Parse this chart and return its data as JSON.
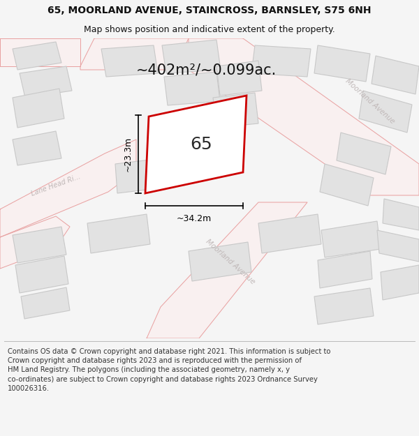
{
  "title_line1": "65, MOORLAND AVENUE, STAINCROSS, BARNSLEY, S75 6NH",
  "title_line2": "Map shows position and indicative extent of the property.",
  "area_text": "~402m²/~0.099ac.",
  "label_65": "65",
  "dim_width": "~34.2m",
  "dim_height": "~23.3m",
  "footer_text": "Contains OS data © Crown copyright and database right 2021. This information is subject to Crown copyright and database rights 2023 and is reproduced with the permission of HM Land Registry. The polygons (including the associated geometry, namely x, y co-ordinates) are subject to Crown copyright and database rights 2023 Ordnance Survey 100026316.",
  "bg_color": "#f5f5f5",
  "map_bg": "#eeecec",
  "building_fill": "#e2e2e2",
  "building_stroke": "#c8c8c8",
  "road_stroke": "#e8a0a0",
  "road_fill": "#f9f0f0",
  "plot_stroke": "#cc0000",
  "street_label_color": "#c0b8b8",
  "footer_color": "#333333",
  "title_fontsize": 10,
  "subtitle_fontsize": 9,
  "area_fontsize": 15,
  "label_fontsize": 18,
  "dim_fontsize": 9,
  "street_fontsize": 7.5,
  "footer_fontsize": 7.2
}
